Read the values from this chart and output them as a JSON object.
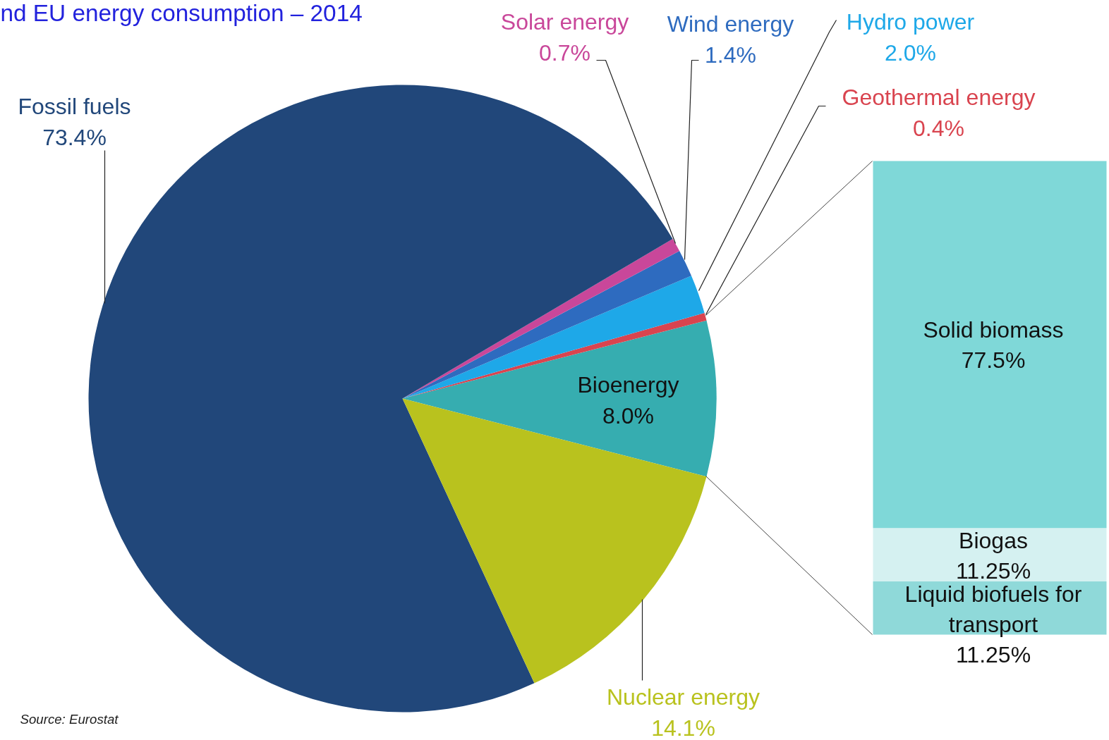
{
  "chart_data": [
    {
      "type": "pie",
      "title": "nd EU energy consumption – 2014",
      "categories": [
        "Bioenergy",
        "Geothermal energy",
        "Hydro power",
        "Wind energy",
        "Solar energy",
        "Fossil fuels",
        "Nuclear energy"
      ],
      "values": [
        8.0,
        0.4,
        2.0,
        1.4,
        0.7,
        73.4,
        14.1
      ],
      "colors": [
        "#36adb0",
        "#d9444f",
        "#1ea8e8",
        "#2e6bbf",
        "#c9479a",
        "#21477a",
        "#b9c21e"
      ],
      "value_labels": [
        "8.0%",
        "0.4%",
        "2.0%",
        "1.4%",
        "0.7%",
        "73.4%",
        "14.1%"
      ],
      "annotations": [
        "Source: Eurostat"
      ]
    },
    {
      "type": "bar",
      "stacked": true,
      "categories": [
        null
      ],
      "series": [
        {
          "name": "Liquid biofuels for transport",
          "color": "#8fd9d9",
          "values": [
            11.25
          ],
          "value_labels": [
            "11.25%"
          ]
        },
        {
          "name": "Biogas",
          "color": "#d5f1f1",
          "values": [
            11.25
          ],
          "value_labels": [
            "11.25%"
          ]
        },
        {
          "name": "Solid biomass",
          "color": "#7fd8d8",
          "values": [
            77.5
          ],
          "value_labels": [
            "77.5%"
          ]
        }
      ]
    }
  ]
}
